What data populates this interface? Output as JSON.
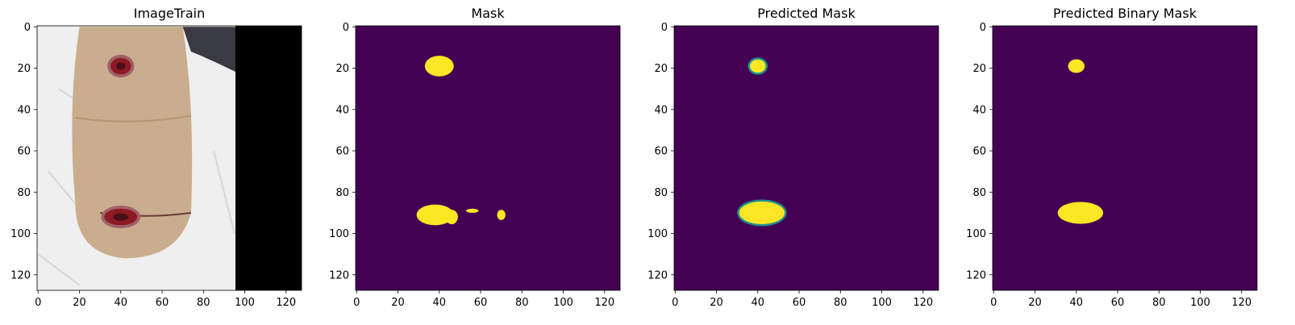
{
  "figure": {
    "background": "#ffffff",
    "colors": {
      "mask_background": "#440154",
      "mask_foreground": "#fde725",
      "mask_edge": "#21918c",
      "skin": "#c9ad8e",
      "sheet": "#efefef",
      "black_region": "#000000",
      "wound": "#8c1a22"
    }
  },
  "chart_data": [
    {
      "type": "heatmap",
      "title": "ImageTrain",
      "content": "rgb-image",
      "xlim": [
        0,
        127
      ],
      "ylim": [
        127,
        0
      ],
      "xticks": [
        0,
        20,
        40,
        60,
        80,
        100,
        120
      ],
      "yticks": [
        0,
        20,
        40,
        60,
        80,
        100,
        120
      ],
      "regions": {
        "black_panel_start_x": 96,
        "limb": {
          "x_range": [
            16,
            74
          ],
          "y_range": [
            0,
            112
          ]
        },
        "wounds": [
          {
            "cx": 40,
            "cy": 19,
            "rx": 5,
            "ry": 4
          },
          {
            "cx": 40,
            "cy": 92,
            "rx": 8,
            "ry": 4
          }
        ]
      }
    },
    {
      "type": "heatmap",
      "title": "Mask",
      "content": "binary-mask",
      "xlim": [
        0,
        127
      ],
      "ylim": [
        127,
        0
      ],
      "xticks": [
        0,
        20,
        40,
        60,
        80,
        100,
        120
      ],
      "yticks": [
        0,
        20,
        40,
        60,
        80,
        100,
        120
      ],
      "blobs": [
        {
          "cx": 40,
          "cy": 19,
          "rx": 7,
          "ry": 5
        },
        {
          "cx": 38,
          "cy": 91,
          "rx": 9,
          "ry": 5
        },
        {
          "cx": 46,
          "cy": 92,
          "rx": 3,
          "ry": 3.5
        },
        {
          "cx": 56,
          "cy": 89,
          "rx": 3,
          "ry": 1
        },
        {
          "cx": 70,
          "cy": 91,
          "rx": 2,
          "ry": 2.5
        }
      ]
    },
    {
      "type": "heatmap",
      "title": "Predicted Mask",
      "content": "probability-mask",
      "xlim": [
        0,
        127
      ],
      "ylim": [
        127,
        0
      ],
      "xticks": [
        0,
        20,
        40,
        60,
        80,
        100,
        120
      ],
      "yticks": [
        0,
        20,
        40,
        60,
        80,
        100,
        120
      ],
      "blobs": [
        {
          "cx": 40,
          "cy": 19,
          "rx": 3.8,
          "ry": 3.2
        },
        {
          "cx": 42,
          "cy": 90,
          "rx": 11,
          "ry": 5.5
        }
      ]
    },
    {
      "type": "heatmap",
      "title": "Predicted Binary Mask",
      "content": "binary-mask",
      "xlim": [
        0,
        127
      ],
      "ylim": [
        127,
        0
      ],
      "xticks": [
        0,
        20,
        40,
        60,
        80,
        100,
        120
      ],
      "yticks": [
        0,
        20,
        40,
        60,
        80,
        100,
        120
      ],
      "blobs": [
        {
          "cx": 40,
          "cy": 19,
          "rx": 4,
          "ry": 3.3
        },
        {
          "cx": 42,
          "cy": 90,
          "rx": 11,
          "ry": 5.3
        }
      ]
    }
  ]
}
